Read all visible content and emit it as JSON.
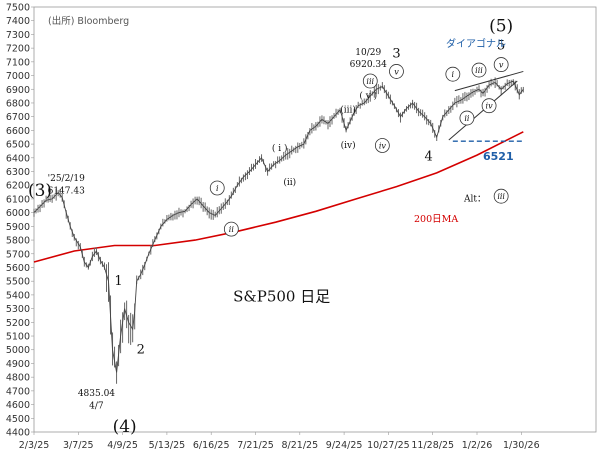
{
  "source": "(出所) Bloomberg",
  "chart_data": {
    "type": "line",
    "title": "S&P500 日足",
    "xlabel": "",
    "ylabel": "",
    "x_ticks": [
      "2/3/25",
      "3/7/25",
      "4/9/25",
      "5/13/25",
      "6/16/25",
      "7/21/25",
      "8/21/25",
      "9/24/25",
      "10/27/25",
      "11/28/25",
      "1/2/26",
      "1/30/26"
    ],
    "ylim": [
      4400,
      7500
    ],
    "y_ticks": [
      4400,
      4500,
      4600,
      4700,
      4800,
      4900,
      5000,
      5100,
      5200,
      5300,
      5400,
      5500,
      5600,
      5700,
      5800,
      5900,
      6000,
      6100,
      6200,
      6300,
      6400,
      6500,
      6600,
      6700,
      6800,
      6900,
      7000,
      7100,
      7200,
      7300,
      7400,
      7500
    ],
    "grid": false,
    "price_series": {
      "name": "",
      "x": [
        0,
        4,
        6,
        9,
        12,
        14,
        16,
        18,
        20,
        23,
        25,
        27,
        29,
        31,
        33,
        35,
        37,
        39,
        41,
        43,
        45,
        47,
        49,
        50,
        51,
        53,
        55,
        57,
        60,
        63,
        66,
        69,
        72,
        75,
        78,
        81,
        84,
        87,
        90,
        93,
        96,
        98,
        101,
        104,
        107,
        110,
        113,
        116,
        119,
        122,
        125,
        128,
        131,
        134,
        137,
        140,
        143,
        146,
        149,
        152,
        155,
        158,
        161,
        164,
        167,
        170,
        173,
        176,
        179,
        182,
        185,
        188,
        191,
        194,
        197,
        200,
        203,
        206,
        209,
        212,
        215,
        218,
        221,
        223,
        226,
        229,
        232,
        235,
        238,
        241,
        243
      ],
      "y": [
        6000,
        6060,
        6090,
        6100,
        6147,
        6110,
        6000,
        5900,
        5820,
        5750,
        5640,
        5600,
        5680,
        5720,
        5650,
        5600,
        5500,
        5000,
        4835,
        5100,
        5300,
        5200,
        5150,
        5280,
        5500,
        5550,
        5620,
        5700,
        5800,
        5900,
        5950,
        5980,
        6000,
        6010,
        6060,
        6100,
        6050,
        6000,
        5980,
        6030,
        6080,
        6120,
        6200,
        6260,
        6300,
        6350,
        6400,
        6300,
        6350,
        6380,
        6420,
        6450,
        6480,
        6500,
        6600,
        6630,
        6680,
        6650,
        6700,
        6750,
        6600,
        6700,
        6780,
        6800,
        6850,
        6900,
        6920,
        6850,
        6780,
        6700,
        6760,
        6800,
        6740,
        6700,
        6650,
        6550,
        6700,
        6750,
        6800,
        6820,
        6850,
        6880,
        6900,
        6870,
        6930,
        6950,
        6900,
        6940,
        6960,
        6860,
        6900
      ]
    },
    "ma_series": {
      "name": "200日MA",
      "x": [
        0,
        20,
        40,
        60,
        80,
        100,
        120,
        140,
        160,
        180,
        200,
        220,
        243
      ],
      "y": [
        5640,
        5720,
        5760,
        5760,
        5800,
        5860,
        5930,
        6010,
        6100,
        6190,
        6290,
        6420,
        6590
      ]
    },
    "support_level": {
      "value": 6521,
      "label": "6521",
      "x_start": 208,
      "x_end": 243
    },
    "diagonal_label": "ダイアゴナル",
    "annotations": [
      {
        "text": "(3)",
        "x": 3,
        "y": 6150,
        "style": "big"
      },
      {
        "text": "'25/2/19",
        "x": 16,
        "y": 6260,
        "style": "small"
      },
      {
        "text": "6147.43",
        "x": 16,
        "y": 6170,
        "style": "small"
      },
      {
        "text": "1",
        "x": 42,
        "y": 5500,
        "style": "mid"
      },
      {
        "text": "2",
        "x": 53,
        "y": 5000,
        "style": "mid"
      },
      {
        "text": "4835.04",
        "x": 31,
        "y": 4690,
        "style": "small"
      },
      {
        "text": "4/7",
        "x": 31,
        "y": 4600,
        "style": "small"
      },
      {
        "text": "(4)",
        "x": 45,
        "y": 4430,
        "style": "big"
      },
      {
        "text": "i",
        "x": 91,
        "y": 6180,
        "style": "circle"
      },
      {
        "text": "ii",
        "x": 98,
        "y": 5880,
        "style": "circle"
      },
      {
        "text": "( i )",
        "x": 122,
        "y": 6480,
        "style": "small"
      },
      {
        "text": "(ii)",
        "x": 127,
        "y": 6230,
        "style": "small"
      },
      {
        "text": "(iii)",
        "x": 156,
        "y": 6760,
        "style": "small"
      },
      {
        "text": "(iv)",
        "x": 156,
        "y": 6500,
        "style": "small"
      },
      {
        "text": "( v )",
        "x": 166,
        "y": 6860,
        "style": "small"
      },
      {
        "text": "iii",
        "x": 167,
        "y": 6960,
        "style": "circle"
      },
      {
        "text": "iv",
        "x": 173,
        "y": 6490,
        "style": "circle"
      },
      {
        "text": "10/29",
        "x": 166,
        "y": 7180,
        "style": "small"
      },
      {
        "text": "6920.34",
        "x": 166,
        "y": 7090,
        "style": "small"
      },
      {
        "text": "3",
        "x": 180,
        "y": 7160,
        "style": "mid"
      },
      {
        "text": "v",
        "x": 180,
        "y": 7030,
        "style": "circle"
      },
      {
        "text": "4",
        "x": 196,
        "y": 6410,
        "style": "mid"
      },
      {
        "text": "i",
        "x": 208,
        "y": 7010,
        "style": "circle"
      },
      {
        "text": "ii",
        "x": 215,
        "y": 6690,
        "style": "circle"
      },
      {
        "text": "iii",
        "x": 221,
        "y": 7040,
        "style": "circle"
      },
      {
        "text": "iv",
        "x": 226,
        "y": 6780,
        "style": "circle"
      },
      {
        "text": "v",
        "x": 232,
        "y": 7080,
        "style": "circle"
      },
      {
        "text": "5",
        "x": 232,
        "y": 7220,
        "style": "mid"
      },
      {
        "text": "(5)",
        "x": 232,
        "y": 7350,
        "style": "big"
      },
      {
        "text": "Alt：",
        "x": 219,
        "y": 6110,
        "style": "small"
      },
      {
        "text": "iii",
        "x": 232,
        "y": 6120,
        "style": "circle"
      },
      {
        "text": "S&P500 日足",
        "x": 123,
        "y": 5380,
        "style": "title"
      }
    ]
  }
}
